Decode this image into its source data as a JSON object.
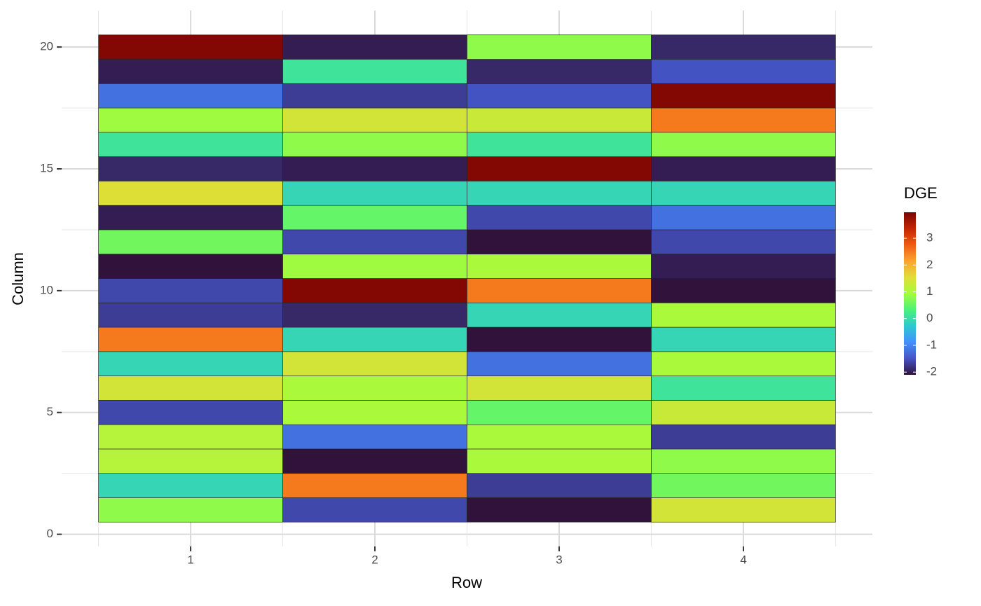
{
  "chart_data": {
    "type": "heatmap",
    "x_label": "Row",
    "y_label": "Column",
    "x": [
      1,
      2,
      3,
      4
    ],
    "y": [
      1,
      2,
      3,
      4,
      5,
      6,
      7,
      8,
      9,
      10,
      11,
      12,
      13,
      14,
      15,
      16,
      17,
      18,
      19,
      20
    ],
    "values": [
      [
        0.8,
        -1.6,
        -2.1,
        1.4
      ],
      [
        -0.1,
        2.5,
        -1.7,
        0.6
      ],
      [
        1.1,
        -2.1,
        1.0,
        0.8
      ],
      [
        1.1,
        -1.2,
        1.0,
        -1.7
      ],
      [
        -1.6,
        1.0,
        0.5,
        1.3
      ],
      [
        1.4,
        1.0,
        1.4,
        0.1
      ],
      [
        -0.1,
        1.4,
        -1.2,
        1.0
      ],
      [
        2.5,
        -0.1,
        -2.1,
        -0.1
      ],
      [
        -1.7,
        -1.9,
        -0.1,
        1.0
      ],
      [
        -1.6,
        3.9,
        2.5,
        -2.1
      ],
      [
        -2.1,
        0.9,
        1.0,
        -2.0
      ],
      [
        0.6,
        -1.6,
        -2.1,
        -1.6
      ],
      [
        -2.0,
        0.5,
        -1.6,
        -1.2
      ],
      [
        1.5,
        -0.1,
        -0.1,
        -0.1
      ],
      [
        -1.9,
        -2.0,
        3.9,
        -2.0
      ],
      [
        0.1,
        0.8,
        0.1,
        0.8
      ],
      [
        0.9,
        1.4,
        1.3,
        2.5
      ],
      [
        -1.2,
        -1.7,
        -1.5,
        3.9
      ],
      [
        -2.0,
        0.1,
        -1.9,
        -1.5
      ],
      [
        3.9,
        -2.0,
        0.8,
        -1.9
      ]
    ],
    "xlim": [
      0.3,
      4.7
    ],
    "xticks": [
      1,
      2,
      3,
      4
    ],
    "ylim": [
      -0.5,
      21.5
    ],
    "yticks": [
      0,
      5,
      10,
      15,
      20
    ],
    "x_minor_grid": [
      0.5,
      1.5,
      2.5,
      3.5,
      4.5
    ],
    "y_minor_grid": [
      2.5,
      7.5,
      12.5,
      17.5
    ],
    "grid": true,
    "colorbar": {
      "title": "DGE",
      "lim": [
        -2.1,
        3.97
      ],
      "ticks": [
        -2,
        -1,
        0,
        1,
        2,
        3
      ],
      "colors": [
        "#30123b",
        "#4454c4",
        "#4490fe",
        "#2cc9cf",
        "#4af27a",
        "#a4fc3c",
        "#e1dd37",
        "#fba42d",
        "#f05b12",
        "#c42503",
        "#7a0403"
      ]
    }
  }
}
